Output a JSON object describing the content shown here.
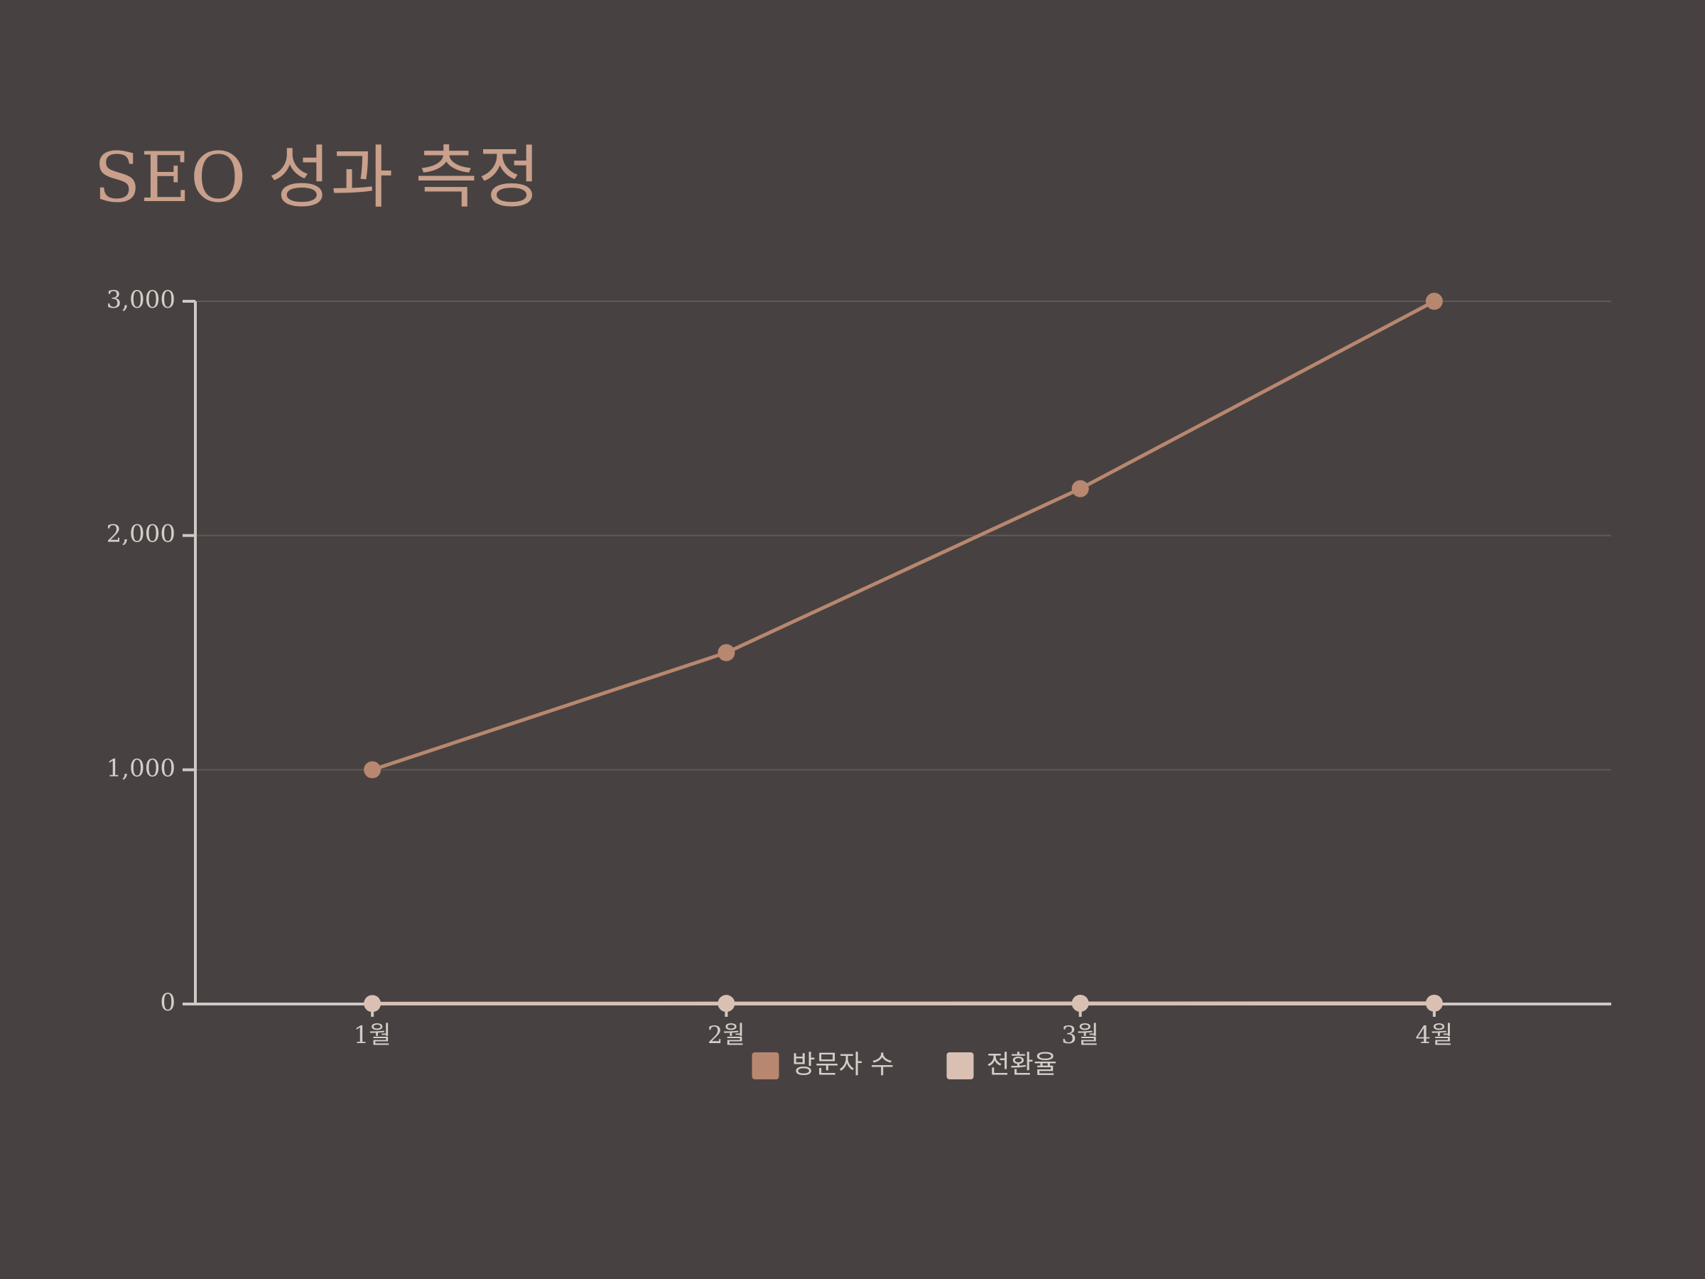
{
  "chart_data": {
    "type": "line",
    "title": "SEO 성과 측정",
    "categories": [
      "1월",
      "2월",
      "3월",
      "4월"
    ],
    "series": [
      {
        "name": "방문자 수",
        "color": "#b8876f",
        "values": [
          1000,
          1500,
          2200,
          3000
        ]
      },
      {
        "name": "전환율",
        "color": "#d9c0b3",
        "values": [
          2,
          2.5,
          3,
          3.5
        ]
      }
    ],
    "ylim": [
      0,
      3000
    ],
    "yticks": [
      0,
      {
        "value": 1000,
        "label": "1,000"
      },
      {
        "value": 2000,
        "label": "2,000"
      },
      {
        "value": 3000,
        "label": "3,000"
      }
    ],
    "grid": true,
    "legend": "bottom"
  }
}
